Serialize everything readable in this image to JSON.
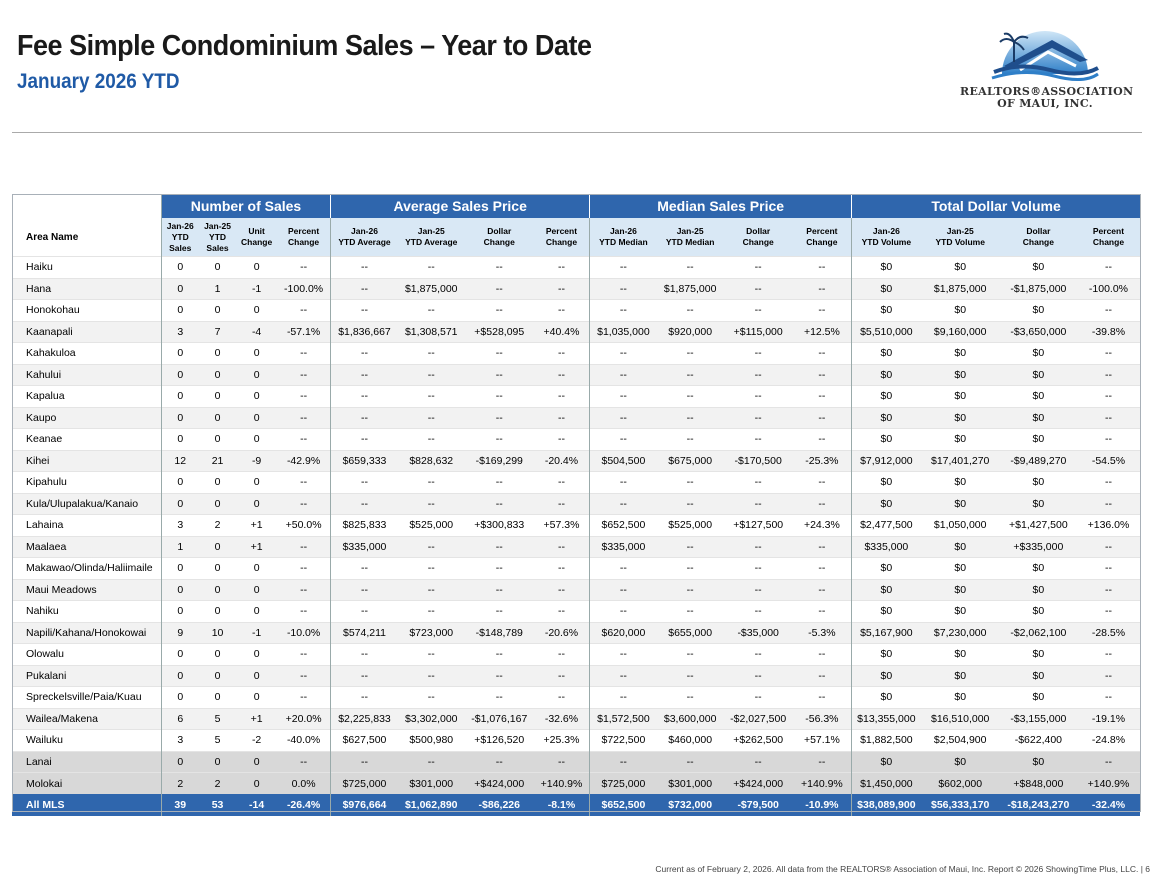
{
  "header": {
    "title": "Fee Simple Condominium Sales – Year to Date",
    "subtitle": "January 2026 YTD",
    "logo_line1": "REALTORS®ASSOCIATION",
    "logo_line2": "OF MAUI, INC."
  },
  "colors": {
    "header_blue": "#2f66ad",
    "subheader_blue": "#d9e8f5",
    "title_blue": "#1f5aa6"
  },
  "groups": [
    "Number of Sales",
    "Average Sales Price",
    "Median Sales Price",
    "Total Dollar Volume"
  ],
  "columns": [
    "Area Name",
    "Jan-26 YTD Sales",
    "Jan-25 YTD Sales",
    "Unit Change",
    "Percent Change",
    "Jan-26 YTD Average",
    "Jan-25 YTD Average",
    "Dollar Change",
    "Percent Change",
    "Jan-26 YTD Median",
    "Jan-25 YTD Median",
    "Dollar Change",
    "Percent Change",
    "Jan-26 YTD Volume",
    "Jan-25 YTD Volume",
    "Dollar Change",
    "Percent Change"
  ],
  "rows": [
    [
      "Haiku",
      "0",
      "0",
      "0",
      "--",
      "--",
      "--",
      "--",
      "--",
      "--",
      "--",
      "--",
      "--",
      "$0",
      "$0",
      "$0",
      "--"
    ],
    [
      "Hana",
      "0",
      "1",
      "-1",
      "-100.0%",
      "--",
      "$1,875,000",
      "--",
      "--",
      "--",
      "$1,875,000",
      "--",
      "--",
      "$0",
      "$1,875,000",
      "-$1,875,000",
      "-100.0%"
    ],
    [
      "Honokohau",
      "0",
      "0",
      "0",
      "--",
      "--",
      "--",
      "--",
      "--",
      "--",
      "--",
      "--",
      "--",
      "$0",
      "$0",
      "$0",
      "--"
    ],
    [
      "Kaanapali",
      "3",
      "7",
      "-4",
      "-57.1%",
      "$1,836,667",
      "$1,308,571",
      "+$528,095",
      "+40.4%",
      "$1,035,000",
      "$920,000",
      "+$115,000",
      "+12.5%",
      "$5,510,000",
      "$9,160,000",
      "-$3,650,000",
      "-39.8%"
    ],
    [
      "Kahakuloa",
      "0",
      "0",
      "0",
      "--",
      "--",
      "--",
      "--",
      "--",
      "--",
      "--",
      "--",
      "--",
      "$0",
      "$0",
      "$0",
      "--"
    ],
    [
      "Kahului",
      "0",
      "0",
      "0",
      "--",
      "--",
      "--",
      "--",
      "--",
      "--",
      "--",
      "--",
      "--",
      "$0",
      "$0",
      "$0",
      "--"
    ],
    [
      "Kapalua",
      "0",
      "0",
      "0",
      "--",
      "--",
      "--",
      "--",
      "--",
      "--",
      "--",
      "--",
      "--",
      "$0",
      "$0",
      "$0",
      "--"
    ],
    [
      "Kaupo",
      "0",
      "0",
      "0",
      "--",
      "--",
      "--",
      "--",
      "--",
      "--",
      "--",
      "--",
      "--",
      "$0",
      "$0",
      "$0",
      "--"
    ],
    [
      "Keanae",
      "0",
      "0",
      "0",
      "--",
      "--",
      "--",
      "--",
      "--",
      "--",
      "--",
      "--",
      "--",
      "$0",
      "$0",
      "$0",
      "--"
    ],
    [
      "Kihei",
      "12",
      "21",
      "-9",
      "-42.9%",
      "$659,333",
      "$828,632",
      "-$169,299",
      "-20.4%",
      "$504,500",
      "$675,000",
      "-$170,500",
      "-25.3%",
      "$7,912,000",
      "$17,401,270",
      "-$9,489,270",
      "-54.5%"
    ],
    [
      "Kipahulu",
      "0",
      "0",
      "0",
      "--",
      "--",
      "--",
      "--",
      "--",
      "--",
      "--",
      "--",
      "--",
      "$0",
      "$0",
      "$0",
      "--"
    ],
    [
      "Kula/Ulupalakua/Kanaio",
      "0",
      "0",
      "0",
      "--",
      "--",
      "--",
      "--",
      "--",
      "--",
      "--",
      "--",
      "--",
      "$0",
      "$0",
      "$0",
      "--"
    ],
    [
      "Lahaina",
      "3",
      "2",
      "+1",
      "+50.0%",
      "$825,833",
      "$525,000",
      "+$300,833",
      "+57.3%",
      "$652,500",
      "$525,000",
      "+$127,500",
      "+24.3%",
      "$2,477,500",
      "$1,050,000",
      "+$1,427,500",
      "+136.0%"
    ],
    [
      "Maalaea",
      "1",
      "0",
      "+1",
      "--",
      "$335,000",
      "--",
      "--",
      "--",
      "$335,000",
      "--",
      "--",
      "--",
      "$335,000",
      "$0",
      "+$335,000",
      "--"
    ],
    [
      "Makawao/Olinda/Haliimaile",
      "0",
      "0",
      "0",
      "--",
      "--",
      "--",
      "--",
      "--",
      "--",
      "--",
      "--",
      "--",
      "$0",
      "$0",
      "$0",
      "--"
    ],
    [
      "Maui Meadows",
      "0",
      "0",
      "0",
      "--",
      "--",
      "--",
      "--",
      "--",
      "--",
      "--",
      "--",
      "--",
      "$0",
      "$0",
      "$0",
      "--"
    ],
    [
      "Nahiku",
      "0",
      "0",
      "0",
      "--",
      "--",
      "--",
      "--",
      "--",
      "--",
      "--",
      "--",
      "--",
      "$0",
      "$0",
      "$0",
      "--"
    ],
    [
      "Napili/Kahana/Honokowai",
      "9",
      "10",
      "-1",
      "-10.0%",
      "$574,211",
      "$723,000",
      "-$148,789",
      "-20.6%",
      "$620,000",
      "$655,000",
      "-$35,000",
      "-5.3%",
      "$5,167,900",
      "$7,230,000",
      "-$2,062,100",
      "-28.5%"
    ],
    [
      "Olowalu",
      "0",
      "0",
      "0",
      "--",
      "--",
      "--",
      "--",
      "--",
      "--",
      "--",
      "--",
      "--",
      "$0",
      "$0",
      "$0",
      "--"
    ],
    [
      "Pukalani",
      "0",
      "0",
      "0",
      "--",
      "--",
      "--",
      "--",
      "--",
      "--",
      "--",
      "--",
      "--",
      "$0",
      "$0",
      "$0",
      "--"
    ],
    [
      "Spreckelsville/Paia/Kuau",
      "0",
      "0",
      "0",
      "--",
      "--",
      "--",
      "--",
      "--",
      "--",
      "--",
      "--",
      "--",
      "$0",
      "$0",
      "$0",
      "--"
    ],
    [
      "Wailea/Makena",
      "6",
      "5",
      "+1",
      "+20.0%",
      "$2,225,833",
      "$3,302,000",
      "-$1,076,167",
      "-32.6%",
      "$1,572,500",
      "$3,600,000",
      "-$2,027,500",
      "-56.3%",
      "$13,355,000",
      "$16,510,000",
      "-$3,155,000",
      "-19.1%"
    ],
    [
      "Wailuku",
      "3",
      "5",
      "-2",
      "-40.0%",
      "$627,500",
      "$500,980",
      "+$126,520",
      "+25.3%",
      "$722,500",
      "$460,000",
      "+$262,500",
      "+57.1%",
      "$1,882,500",
      "$2,504,900",
      "-$622,400",
      "-24.8%"
    ]
  ],
  "island_rows": [
    [
      "Lanai",
      "0",
      "0",
      "0",
      "--",
      "--",
      "--",
      "--",
      "--",
      "--",
      "--",
      "--",
      "--",
      "$0",
      "$0",
      "$0",
      "--"
    ],
    [
      "Molokai",
      "2",
      "2",
      "0",
      "0.0%",
      "$725,000",
      "$301,000",
      "+$424,000",
      "+140.9%",
      "$725,000",
      "$301,000",
      "+$424,000",
      "+140.9%",
      "$1,450,000",
      "$602,000",
      "+$848,000",
      "+140.9%"
    ]
  ],
  "total_row": [
    "All MLS",
    "39",
    "53",
    "-14",
    "-26.4%",
    "$976,664",
    "$1,062,890",
    "-$86,226",
    "-8.1%",
    "$652,500",
    "$732,000",
    "-$79,500",
    "-10.9%",
    "$38,089,900",
    "$56,333,170",
    "-$18,243,270",
    "-32.4%"
  ],
  "footer": "Current as of February 2, 2026. All data from the REALTORS® Association of Maui, Inc. Report © 2026 ShowingTime Plus, LLC.  |  6"
}
